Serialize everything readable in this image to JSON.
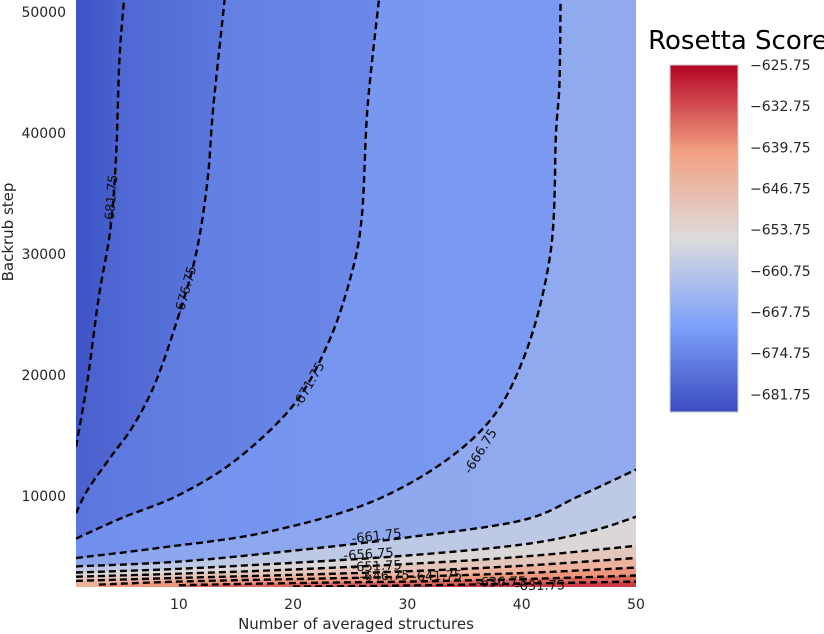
{
  "chart_data": {
    "type": "contour",
    "xlabel": "Number of averaged structures",
    "ylabel": "Backrub step",
    "x_ticks": [
      10,
      20,
      30,
      40,
      50
    ],
    "y_ticks": [
      10000,
      20000,
      30000,
      40000,
      50000
    ],
    "xlim": [
      1,
      50
    ],
    "ylim": [
      2500,
      51000
    ],
    "colormap": "coolwarm",
    "colorbar": {
      "title": "Rosetta Score",
      "range": [
        -684.75,
        -625.75
      ],
      "ticks": [
        "−625.75",
        "−632.75",
        "−639.75",
        "−646.75",
        "−653.75",
        "−660.75",
        "−667.75",
        "−674.75",
        "−681.75"
      ],
      "tick_values": [
        -625.75,
        -632.75,
        -639.75,
        -646.75,
        -653.75,
        -660.75,
        -667.75,
        -674.75,
        -681.75
      ]
    },
    "contour_levels": [
      {
        "level": -681.75,
        "label": "-681.75",
        "points": [
          [
            1,
            14100
          ],
          [
            2,
            19500
          ],
          [
            3,
            26500
          ],
          [
            4,
            32000
          ],
          [
            4.5,
            38000
          ],
          [
            4.8,
            46000
          ],
          [
            5.2,
            51000
          ]
        ]
      },
      {
        "level": -676.75,
        "label": "-676.75",
        "points": [
          [
            1,
            8600
          ],
          [
            2,
            10500
          ],
          [
            4,
            13200
          ],
          [
            6,
            15800
          ],
          [
            8,
            19500
          ],
          [
            10,
            25000
          ],
          [
            11.5,
            30000
          ],
          [
            12.5,
            36000
          ],
          [
            13,
            42000
          ],
          [
            14,
            51000
          ]
        ]
      },
      {
        "level": -671.75,
        "label": "-671.75",
        "points": [
          [
            1,
            6500
          ],
          [
            5,
            8200
          ],
          [
            10,
            10100
          ],
          [
            15,
            13000
          ],
          [
            20,
            17500
          ],
          [
            23,
            22500
          ],
          [
            25,
            28000
          ],
          [
            26,
            33000
          ],
          [
            26.5,
            42000
          ],
          [
            27.5,
            51000
          ]
        ]
      },
      {
        "level": -666.75,
        "label": "-666.75",
        "points": [
          [
            1,
            4900
          ],
          [
            8,
            5700
          ],
          [
            18,
            7100
          ],
          [
            28,
            10000
          ],
          [
            36,
            15000
          ],
          [
            40,
            21000
          ],
          [
            42.5,
            30000
          ],
          [
            43,
            40000
          ],
          [
            43.3,
            44000
          ],
          [
            43.4,
            51000
          ]
        ]
      },
      {
        "level": -661.75,
        "label": "-661.75",
        "points": [
          [
            1,
            4200
          ],
          [
            10,
            4600
          ],
          [
            20,
            5500
          ],
          [
            30,
            6600
          ],
          [
            40,
            8000
          ],
          [
            45,
            10000
          ],
          [
            50,
            12200
          ]
        ]
      },
      {
        "level": -656.75,
        "label": "-656.75",
        "points": [
          [
            1,
            3700
          ],
          [
            10,
            4000
          ],
          [
            20,
            4500
          ],
          [
            30,
            5100
          ],
          [
            40,
            6000
          ],
          [
            46,
            7100
          ],
          [
            50,
            8300
          ]
        ]
      },
      {
        "level": -651.75,
        "label": "-651.75",
        "points": [
          [
            1,
            3350
          ],
          [
            10,
            3600
          ],
          [
            20,
            3950
          ],
          [
            30,
            4400
          ],
          [
            40,
            5000
          ],
          [
            50,
            5900
          ]
        ]
      },
      {
        "level": -646.75,
        "label": "-646.75",
        "points": [
          [
            1,
            3000
          ],
          [
            10,
            3250
          ],
          [
            20,
            3500
          ],
          [
            30,
            3800
          ],
          [
            40,
            4250
          ],
          [
            50,
            4900
          ]
        ]
      },
      {
        "level": -641.75,
        "label": "-641.75",
        "points": [
          [
            3,
            2700
          ],
          [
            10,
            2950
          ],
          [
            20,
            3150
          ],
          [
            30,
            3350
          ],
          [
            40,
            3650
          ],
          [
            50,
            4100
          ]
        ]
      },
      {
        "level": -636.75,
        "label": "-636.75",
        "points": [
          [
            10,
            2650
          ],
          [
            20,
            2820
          ],
          [
            30,
            2950
          ],
          [
            40,
            3150
          ],
          [
            50,
            3450
          ]
        ]
      },
      {
        "level": -631.75,
        "label": "-631.75",
        "points": [
          [
            20,
            2530
          ],
          [
            30,
            2620
          ],
          [
            40,
            2780
          ],
          [
            50,
            2950
          ]
        ]
      }
    ],
    "contour_labels": [
      {
        "text": "-681.75",
        "x": 4.1,
        "y": 34500
      },
      {
        "text": "-676.75",
        "x": 10.6,
        "y": 27000
      },
      {
        "text": "-671.75",
        "x": 21.4,
        "y": 19200
      },
      {
        "text": "-666.75",
        "x": 36.4,
        "y": 13700
      },
      {
        "text": "-661.75",
        "x": 27.3,
        "y": 6700
      },
      {
        "text": "-656.75",
        "x": 26.6,
        "y": 5200
      },
      {
        "text": "-651.75",
        "x": 27.3,
        "y": 4200
      },
      {
        "text": "-646.75",
        "x": 28.0,
        "y": 3400
      },
      {
        "text": "-641.75",
        "x": 32.6,
        "y": 3400
      },
      {
        "text": "-636.75",
        "x": 38.2,
        "y": 2900
      },
      {
        "text": "-631.75",
        "x": 41.6,
        "y": 2600
      }
    ]
  }
}
